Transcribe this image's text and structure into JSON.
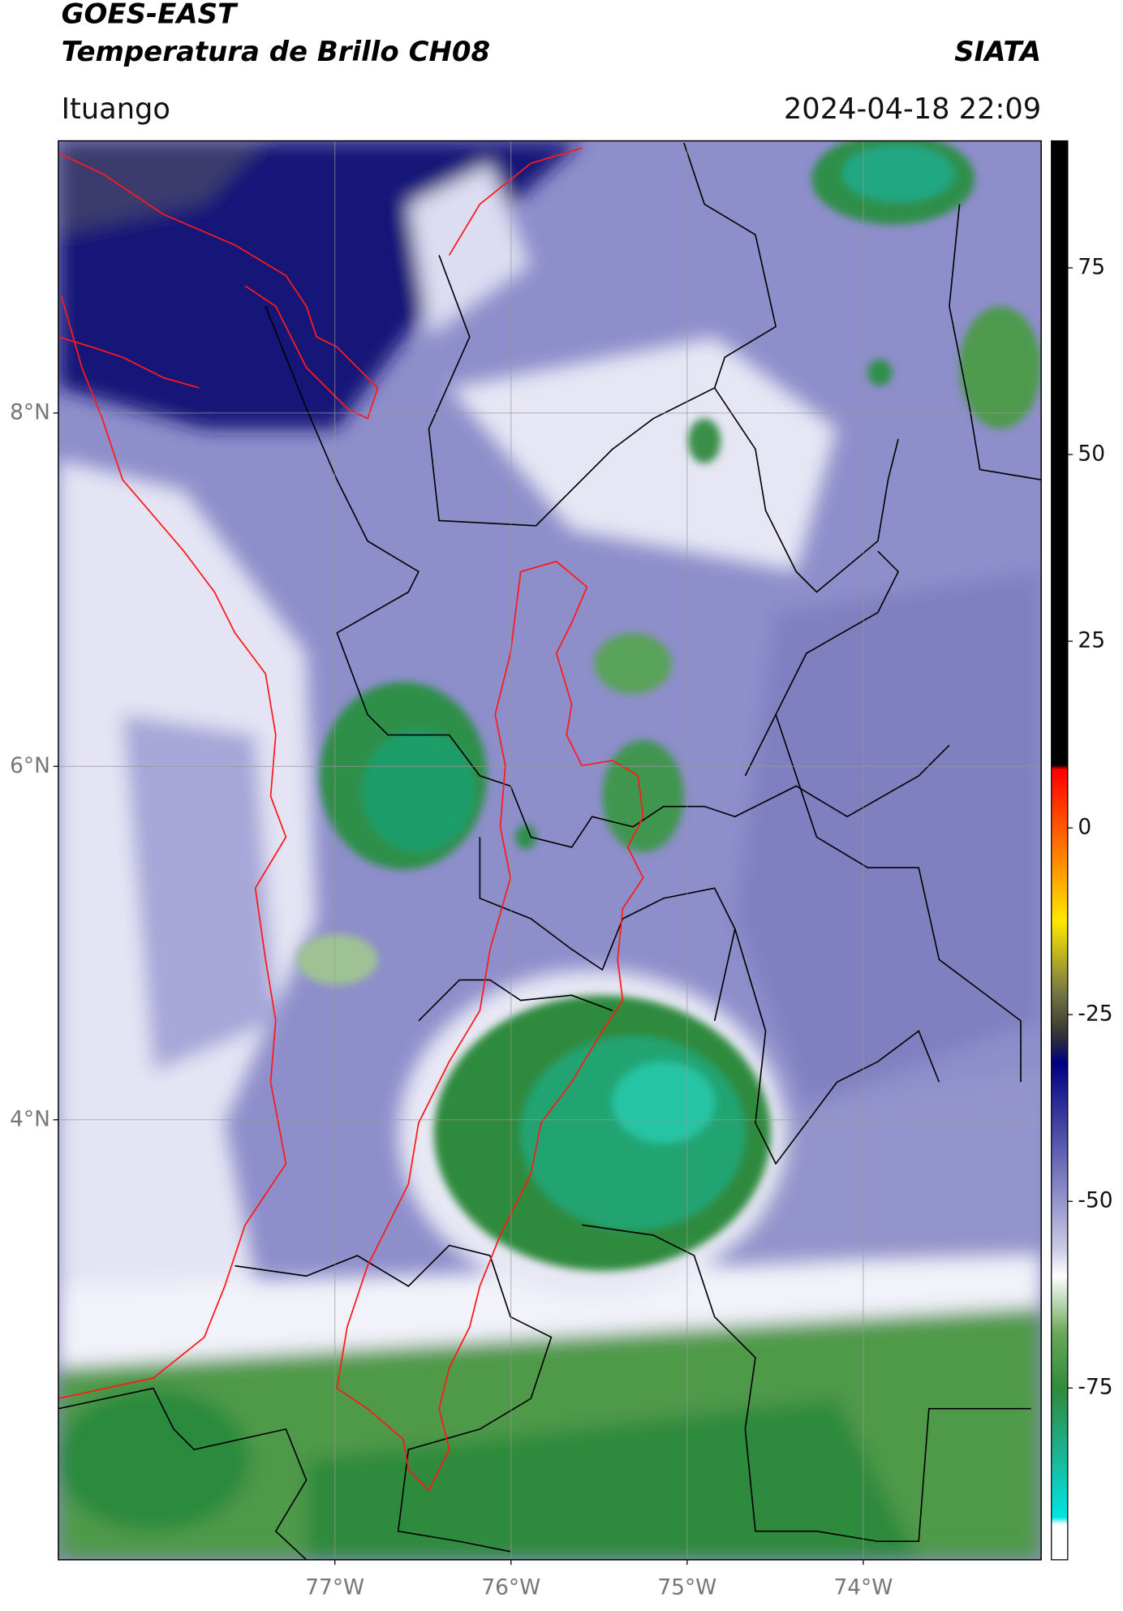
{
  "chart_data": {
    "type": "map",
    "title": "GOES-EAST",
    "subtitle": "Temperatura de Brillo CH08",
    "source": "SIATA",
    "location": "Ituango",
    "datetime": "2024-04-18 22:09",
    "xlim": [
      -78.57,
      -72.99
    ],
    "ylim": [
      1.51,
      9.54
    ],
    "xticks": [
      {
        "value": -77,
        "label": "77°W"
      },
      {
        "value": -76,
        "label": "76°W"
      },
      {
        "value": -75,
        "label": "75°W"
      },
      {
        "value": -74,
        "label": "74°W"
      }
    ],
    "yticks": [
      {
        "value": 8,
        "label": "8°N"
      },
      {
        "value": 6,
        "label": "6°N"
      },
      {
        "value": 4,
        "label": "4°N"
      }
    ],
    "grid": true,
    "clim": [
      -98,
      92
    ],
    "cticks": [
      75,
      50,
      25,
      0,
      -25,
      -50,
      -75
    ]
  }
}
